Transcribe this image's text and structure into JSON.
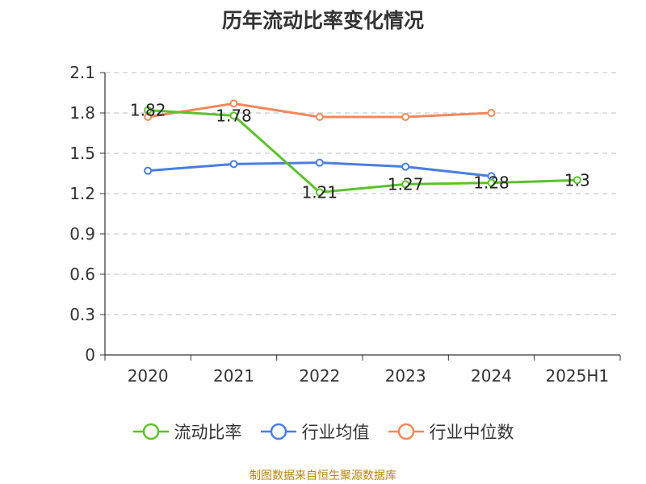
{
  "chart_data": {
    "type": "line",
    "title": "历年流动比率变化情况",
    "categories": [
      "2020",
      "2021",
      "2022",
      "2023",
      "2024",
      "2025H1"
    ],
    "y_ticks": [
      "0",
      "0.3",
      "0.6",
      "0.9",
      "1.2",
      "1.5",
      "1.8",
      "2.1"
    ],
    "ylim": [
      0,
      2.1
    ],
    "grid": "dashed-horizontal",
    "legend_position": "bottom",
    "series": [
      {
        "name": "流动比率",
        "color": "#5cc12e",
        "values": [
          1.82,
          1.78,
          1.21,
          1.27,
          1.28,
          1.3
        ],
        "labels": [
          "1.82",
          "1.78",
          "1.21",
          "1.27",
          "1.28",
          "1.3"
        ]
      },
      {
        "name": "行业均值",
        "color": "#4a7ee0",
        "values": [
          1.37,
          1.42,
          1.43,
          1.4,
          1.33,
          null
        ]
      },
      {
        "name": "行业中位数",
        "color": "#f4885a",
        "values": [
          1.77,
          1.87,
          1.77,
          1.77,
          1.8,
          null
        ]
      }
    ]
  },
  "footer": {
    "source": "制图数据来自恒生聚源数据库"
  }
}
